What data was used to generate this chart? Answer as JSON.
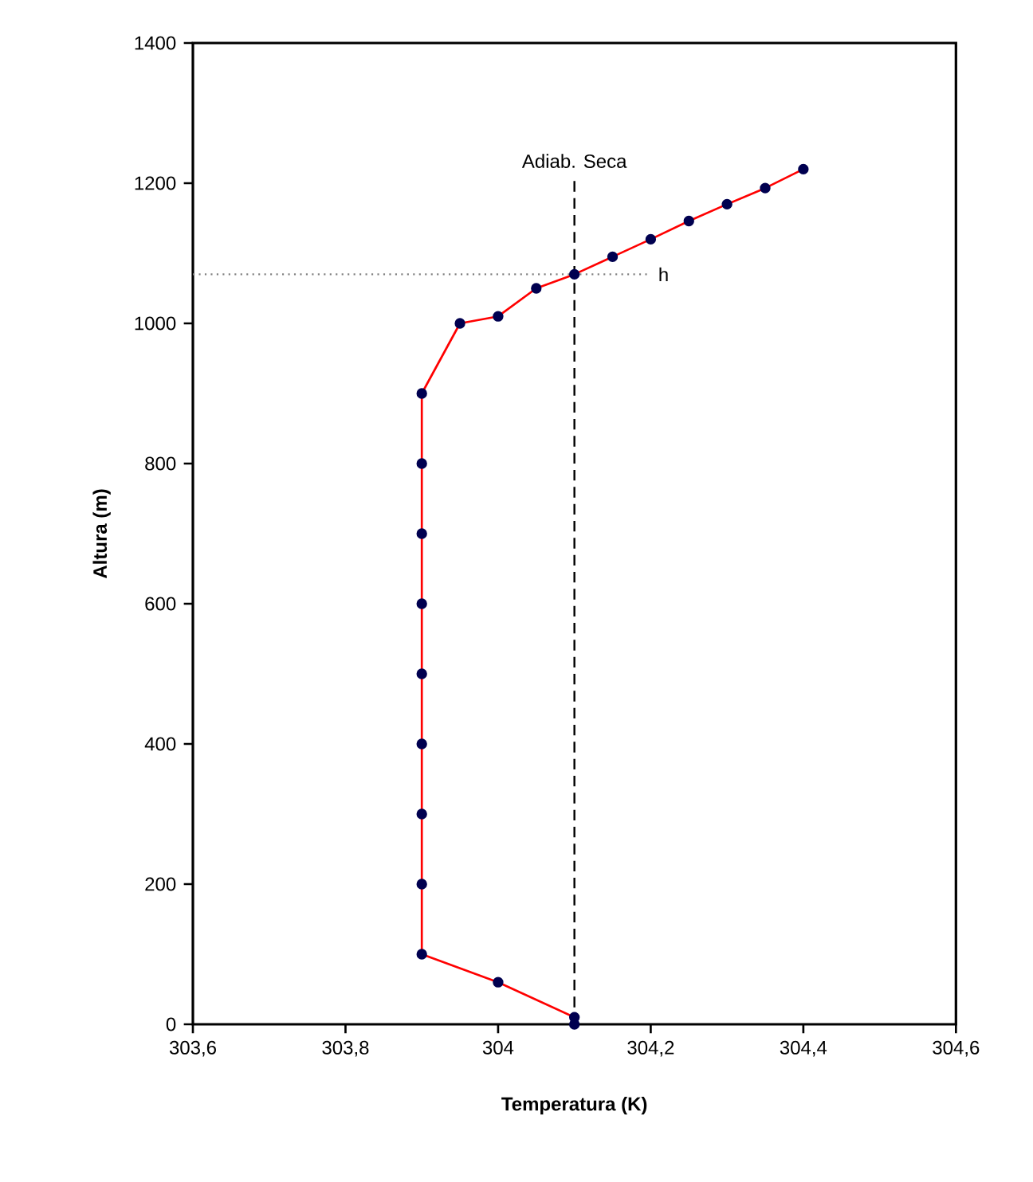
{
  "chart_data": {
    "type": "line",
    "xlabel": "Temperatura (K)",
    "ylabel": "Altura (m)",
    "x": [
      304.1,
      304.1,
      304,
      303.9,
      303.9,
      303.9,
      303.9,
      303.9,
      303.9,
      303.9,
      303.9,
      303.9,
      303.95,
      304,
      304.05,
      304.1,
      304.15,
      304.2,
      304.25,
      304.3,
      304.35,
      304.4
    ],
    "series": [
      {
        "color": "#ff0000",
        "values": [
          0,
          10,
          60,
          100,
          200,
          300,
          400,
          500,
          600,
          700,
          800,
          900,
          1000,
          1010,
          1050,
          1070,
          1095,
          1120,
          1146,
          1170,
          1193,
          1220
        ]
      }
    ],
    "marker": "circle",
    "line_style": "solid",
    "xlim": [
      303.6,
      304.6
    ],
    "xticks": [
      {
        "value": 303.6,
        "label": "303,6"
      },
      {
        "value": 303.8,
        "label": "303,8"
      },
      304,
      {
        "value": 304.2,
        "label": "304,2"
      },
      {
        "value": 304.4,
        "label": "304,4"
      },
      {
        "value": 304.6,
        "label": "304,6"
      }
    ],
    "ylim": [
      0,
      1400
    ],
    "yticks": [
      0,
      200,
      400,
      600,
      800,
      1000,
      1200,
      1400
    ],
    "ref_lines": [
      {
        "axis": "x",
        "value": 304.1,
        "label": "Adiab. Seca",
        "color": "#000000",
        "line_style": "dashed"
      },
      {
        "axis": "y",
        "value": 1070,
        "label": "h",
        "color": "#808080",
        "line_style": "dotted"
      }
    ]
  }
}
